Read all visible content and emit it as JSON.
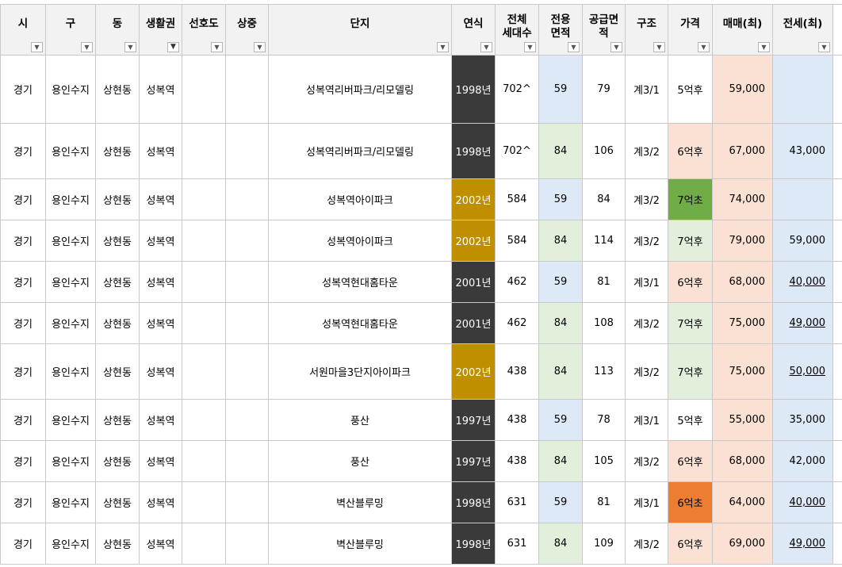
{
  "headers": {
    "si": "시",
    "gu": "구",
    "dong": "동",
    "area": "생활권",
    "pref": "선호도",
    "sang": "상중",
    "danji": "단지",
    "year": "연식",
    "units": "전체\n세대수",
    "excl": "전용\n면적",
    "supply": "공급면\n적",
    "struct": "구조",
    "price": "가격",
    "sale": "매매(최)",
    "jeonse": "전세(최)"
  },
  "icons": {
    "dropdown": "▼",
    "filter": "▼"
  },
  "colors": {
    "header_bg": "#f2f2f2",
    "blue": "#dde9f6",
    "green": "#e2efda",
    "peach": "#fbe1d4",
    "dark": "#3a3a3a",
    "gold": "#bf8f00",
    "grass": "#70ad47",
    "orange": "#ed7d31"
  },
  "rows": [
    {
      "si": "경기",
      "gu": "용인수지",
      "dong": "상현동",
      "area": "성복역",
      "pref": "",
      "sang": "",
      "danji": "성복역리버파크/리모델링",
      "year": "1998년",
      "yearColor": "dark",
      "units": "702^",
      "excl": "59",
      "exclColor": "blue",
      "supply": "79",
      "struct": "계3/1",
      "price": "5억후",
      "priceColor": "white",
      "sale": "59,000",
      "jeonse": "",
      "under": false
    },
    {
      "si": "경기",
      "gu": "용인수지",
      "dong": "상현동",
      "area": "성복역",
      "pref": "",
      "sang": "",
      "danji": "성복역리버파크/리모델링",
      "year": "1998년",
      "yearColor": "dark",
      "units": "702^",
      "excl": "84",
      "exclColor": "green",
      "supply": "106",
      "struct": "계3/2",
      "price": "6억후",
      "priceColor": "peach",
      "sale": "67,000",
      "jeonse": "43,000",
      "under": false
    },
    {
      "si": "경기",
      "gu": "용인수지",
      "dong": "상현동",
      "area": "성복역",
      "pref": "",
      "sang": "",
      "danji": "성복역아이파크",
      "year": "2002년",
      "yearColor": "gold",
      "units": "584",
      "excl": "59",
      "exclColor": "blue",
      "supply": "84",
      "struct": "계3/2",
      "price": "7억초",
      "priceColor": "grass",
      "sale": "74,000",
      "jeonse": "",
      "under": false
    },
    {
      "si": "경기",
      "gu": "용인수지",
      "dong": "상현동",
      "area": "성복역",
      "pref": "",
      "sang": "",
      "danji": "성복역아이파크",
      "year": "2002년",
      "yearColor": "gold",
      "units": "584",
      "excl": "84",
      "exclColor": "green",
      "supply": "114",
      "struct": "계3/2",
      "price": "7억후",
      "priceColor": "green",
      "sale": "79,000",
      "jeonse": "59,000",
      "under": false
    },
    {
      "si": "경기",
      "gu": "용인수지",
      "dong": "상현동",
      "area": "성복역",
      "pref": "",
      "sang": "",
      "danji": "성복역현대홈타운",
      "year": "2001년",
      "yearColor": "dark",
      "units": "462",
      "excl": "59",
      "exclColor": "blue",
      "supply": "81",
      "struct": "계3/1",
      "price": "6억후",
      "priceColor": "peach",
      "sale": "68,000",
      "jeonse": "40,000",
      "under": true
    },
    {
      "si": "경기",
      "gu": "용인수지",
      "dong": "상현동",
      "area": "성복역",
      "pref": "",
      "sang": "",
      "danji": "성복역현대홈타운",
      "year": "2001년",
      "yearColor": "dark",
      "units": "462",
      "excl": "84",
      "exclColor": "green",
      "supply": "108",
      "struct": "계3/2",
      "price": "7억후",
      "priceColor": "green",
      "sale": "75,000",
      "jeonse": "49,000",
      "under": true
    },
    {
      "si": "경기",
      "gu": "용인수지",
      "dong": "상현동",
      "area": "성복역",
      "pref": "",
      "sang": "",
      "danji": "서원마을3단지아이파크",
      "year": "2002년",
      "yearColor": "gold",
      "units": "438",
      "excl": "84",
      "exclColor": "green",
      "supply": "113",
      "struct": "계3/2",
      "price": "7억후",
      "priceColor": "green",
      "sale": "75,000",
      "jeonse": "50,000",
      "under": true
    },
    {
      "si": "경기",
      "gu": "용인수지",
      "dong": "상현동",
      "area": "성복역",
      "pref": "",
      "sang": "",
      "danji": "풍산",
      "year": "1997년",
      "yearColor": "dark",
      "units": "438",
      "excl": "59",
      "exclColor": "blue",
      "supply": "78",
      "struct": "계3/1",
      "price": "5억후",
      "priceColor": "white",
      "sale": "55,000",
      "jeonse": "35,000",
      "under": false
    },
    {
      "si": "경기",
      "gu": "용인수지",
      "dong": "상현동",
      "area": "성복역",
      "pref": "",
      "sang": "",
      "danji": "풍산",
      "year": "1997년",
      "yearColor": "dark",
      "units": "438",
      "excl": "84",
      "exclColor": "green",
      "supply": "105",
      "struct": "계3/2",
      "price": "6억후",
      "priceColor": "peach",
      "sale": "68,000",
      "jeonse": "42,000",
      "under": false
    },
    {
      "si": "경기",
      "gu": "용인수지",
      "dong": "상현동",
      "area": "성복역",
      "pref": "",
      "sang": "",
      "danji": "벽산블루밍",
      "year": "1998년",
      "yearColor": "dark",
      "units": "631",
      "excl": "59",
      "exclColor": "blue",
      "supply": "81",
      "struct": "계3/1",
      "price": "6억초",
      "priceColor": "orange",
      "sale": "64,000",
      "jeonse": "40,000",
      "under": true
    },
    {
      "si": "경기",
      "gu": "용인수지",
      "dong": "상현동",
      "area": "성복역",
      "pref": "",
      "sang": "",
      "danji": "벽산블루밍",
      "year": "1998년",
      "yearColor": "dark",
      "units": "631",
      "excl": "84",
      "exclColor": "green",
      "supply": "109",
      "struct": "계3/2",
      "price": "6억후",
      "priceColor": "peach",
      "sale": "69,000",
      "jeonse": "49,000",
      "under": true
    }
  ]
}
